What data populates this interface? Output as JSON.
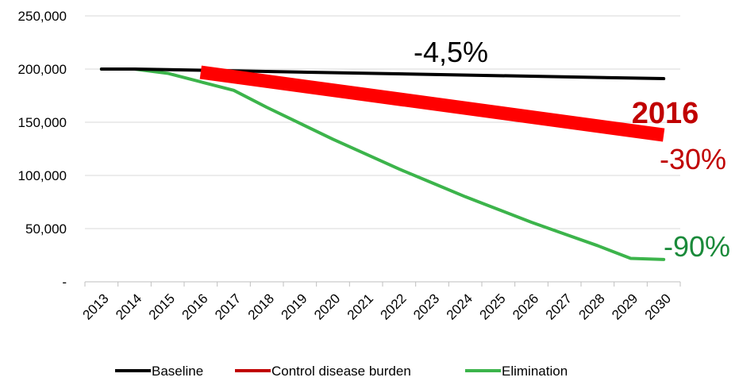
{
  "chart_data": {
    "type": "line",
    "title": "",
    "xlabel": "",
    "ylabel": "",
    "categories": [
      "2013",
      "2014",
      "2015",
      "2016",
      "2017",
      "2018",
      "2019",
      "2020",
      "2021",
      "2022",
      "2023",
      "2024",
      "2025",
      "2026",
      "2027",
      "2028",
      "2029",
      "2030"
    ],
    "ylim": [
      0,
      250000
    ],
    "y_ticks": [
      "-",
      "50,000",
      "100,000",
      "150,000",
      "200,000",
      "250,000"
    ],
    "grid": "horizontal",
    "legend_position": "bottom",
    "series": [
      {
        "name": "Baseline",
        "color": "#000000",
        "x": [
          "2013",
          "2014",
          "2030"
        ],
        "values": [
          200000,
          200000,
          191000
        ]
      },
      {
        "name": "Control disease burden",
        "color": "#ff0000",
        "legend_color": "#c00000",
        "x": [
          "2016",
          "2030"
        ],
        "values": [
          197000,
          138000
        ]
      },
      {
        "name": "Elimination",
        "color": "#3cb44b",
        "x": [
          "2013",
          "2014",
          "2015",
          "2016",
          "2017",
          "2018",
          "2019",
          "2020",
          "2021",
          "2022",
          "2023",
          "2024",
          "2025",
          "2026",
          "2027",
          "2028",
          "2029",
          "2030"
        ],
        "values": [
          200000,
          200000,
          196000,
          188000,
          180000,
          164000,
          149000,
          134000,
          120000,
          106000,
          93000,
          80000,
          68000,
          56000,
          45000,
          34000,
          22000,
          21000
        ]
      }
    ],
    "annotations": [
      {
        "text": "-4,5%",
        "color": "#000000"
      },
      {
        "text": "2016",
        "color": "#c00000"
      },
      {
        "text": "-30%",
        "color": "#c00000"
      },
      {
        "text": "-90%",
        "color": "#1a8a3a"
      }
    ]
  }
}
